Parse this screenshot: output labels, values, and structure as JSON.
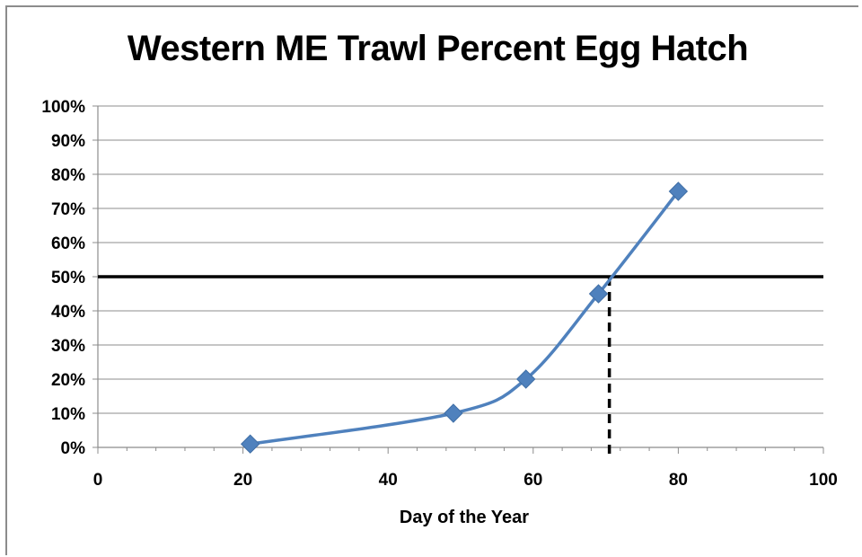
{
  "chart_data": {
    "type": "line",
    "title": "Western ME Trawl Percent Egg Hatch",
    "xlabel": "Day of the Year",
    "ylabel": "",
    "xlim": [
      0,
      100
    ],
    "ylim": [
      0,
      1
    ],
    "x_ticks": [
      0,
      20,
      40,
      60,
      80,
      100
    ],
    "x_tick_labels": [
      "0",
      "20",
      "40",
      "60",
      "80",
      "100"
    ],
    "y_ticks": [
      0,
      0.1,
      0.2,
      0.3,
      0.4,
      0.5,
      0.6,
      0.7,
      0.8,
      0.9,
      1.0
    ],
    "y_tick_labels": [
      "0%",
      "10%",
      "20%",
      "30%",
      "40%",
      "50%",
      "60%",
      "70%",
      "80%",
      "90%",
      "100%"
    ],
    "grid": "horizontal",
    "series": [
      {
        "x": [
          21,
          49,
          59,
          69,
          80
        ],
        "y": [
          0.01,
          0.1,
          0.2,
          0.45,
          0.75
        ],
        "color": "#4f81bd",
        "marker": "diamond",
        "smooth": true
      }
    ],
    "reference_lines": [
      {
        "orientation": "horizontal",
        "y": 0.5,
        "style": "solid",
        "color": "#000000"
      },
      {
        "orientation": "vertical",
        "x": 70.5,
        "style": "dashed",
        "color": "#000000"
      }
    ]
  }
}
